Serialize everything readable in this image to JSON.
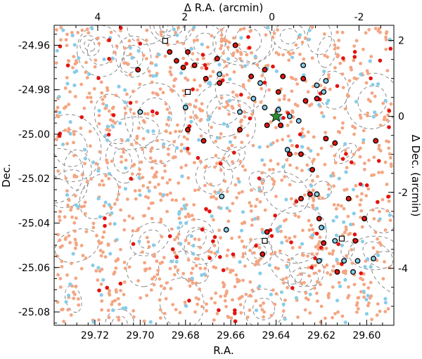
{
  "chart_data": {
    "type": "scatter",
    "xlabel": "R.A.",
    "ylabel": "Dec.",
    "top_xlabel": "Δ R.A. (arcmin)",
    "right_ylabel": "Δ Dec. (arcmin)",
    "xlim": [
      29.738,
      29.588
    ],
    "ylim": [
      -25.086,
      -24.951
    ],
    "top_xlim": [
      5.0,
      -2.8
    ],
    "right_ylim": [
      -5.5,
      2.4
    ],
    "x_ticks": [
      "29.72",
      "29.70",
      "29.68",
      "29.66",
      "29.64",
      "29.62",
      "29.60"
    ],
    "y_ticks": [
      "-24.96",
      "-24.98",
      "-25.00",
      "-25.02",
      "-25.04",
      "-25.06",
      "-25.08"
    ],
    "top_ticks": [
      "4",
      "2",
      "0",
      "-2"
    ],
    "right_ticks": [
      "2",
      "0",
      "-2",
      "-4"
    ],
    "colors": {
      "field_galaxies": "#f4a582",
      "blue_galaxies": "#87cde8",
      "red_galaxies": "#e3140f",
      "contours": "#888888",
      "star": "#2e8b2e"
    },
    "grid": false,
    "legend": "none",
    "center_marker": {
      "type": "star",
      "ra": 29.64,
      "dec": -24.992
    },
    "square_markers": [
      {
        "ra": 29.689,
        "dec": -24.958
      },
      {
        "ra": 29.679,
        "dec": -24.981
      },
      {
        "ra": 29.645,
        "dec": -25.048
      },
      {
        "ra": 29.611,
        "dec": -25.047
      }
    ],
    "circled_blue": [
      {
        "ra": 29.7,
        "dec": -24.99
      },
      {
        "ra": 29.634,
        "dec": -24.992
      },
      {
        "ra": 29.63,
        "dec": -24.994
      },
      {
        "ra": 29.639,
        "dec": -24.989
      },
      {
        "ra": 29.65,
        "dec": -24.984
      },
      {
        "ra": 29.647,
        "dec": -24.977
      },
      {
        "ra": 29.628,
        "dec": -24.969
      },
      {
        "ra": 29.622,
        "dec": -24.978
      },
      {
        "ra": 29.618,
        "dec": -24.976
      },
      {
        "ra": 29.619,
        "dec": -24.981
      },
      {
        "ra": 29.656,
        "dec": -24.99
      },
      {
        "ra": 29.665,
        "dec": -24.973
      },
      {
        "ra": 29.664,
        "dec": -25.028
      },
      {
        "ra": 29.622,
        "dec": -25.027
      },
      {
        "ra": 29.662,
        "dec": -25.043
      },
      {
        "ra": 29.62,
        "dec": -25.042
      },
      {
        "ra": 29.614,
        "dec": -25.048
      },
      {
        "ra": 29.61,
        "dec": -25.057
      },
      {
        "ra": 29.621,
        "dec": -25.057
      },
      {
        "ra": 29.604,
        "dec": -25.057
      },
      {
        "ra": 29.597,
        "dec": -25.056
      },
      {
        "ra": 29.606,
        "dec": -25.062
      },
      {
        "ra": 29.68,
        "dec": -24.988
      },
      {
        "ra": 29.635,
        "dec": -25.007
      },
      {
        "ra": 29.645,
        "dec": -24.988
      }
    ],
    "circled_red": [
      {
        "ra": 29.701,
        "dec": -24.971
      },
      {
        "ra": 29.687,
        "dec": -24.963
      },
      {
        "ra": 29.684,
        "dec": -24.967
      },
      {
        "ra": 29.681,
        "dec": -24.97
      },
      {
        "ra": 29.679,
        "dec": -24.963
      },
      {
        "ra": 29.676,
        "dec": -24.969
      },
      {
        "ra": 29.671,
        "dec": -24.975
      },
      {
        "ra": 29.666,
        "dec": -24.966
      },
      {
        "ra": 29.658,
        "dec": -24.96
      },
      {
        "ra": 29.651,
        "dec": -24.974
      },
      {
        "ra": 29.639,
        "dec": -24.981
      },
      {
        "ra": 29.637,
        "dec": -24.974
      },
      {
        "ra": 29.627,
        "dec": -24.985
      },
      {
        "ra": 29.622,
        "dec": -24.984
      },
      {
        "ra": 29.656,
        "dec": -24.998
      },
      {
        "ra": 29.679,
        "dec": -24.998
      },
      {
        "ra": 29.672,
        "dec": -25.003
      },
      {
        "ra": 29.618,
        "dec": -25.002
      },
      {
        "ra": 29.614,
        "dec": -25.004
      },
      {
        "ra": 29.596,
        "dec": -25.003
      },
      {
        "ra": 29.634,
        "dec": -25.009
      },
      {
        "ra": 29.629,
        "dec": -25.009
      },
      {
        "ra": 29.624,
        "dec": -25.016
      },
      {
        "ra": 29.625,
        "dec": -25.027
      },
      {
        "ra": 29.629,
        "dec": -25.029
      },
      {
        "ra": 29.608,
        "dec": -25.029
      },
      {
        "ra": 29.621,
        "dec": -25.038
      },
      {
        "ra": 29.601,
        "dec": -25.038
      },
      {
        "ra": 29.644,
        "dec": -25.044
      },
      {
        "ra": 29.646,
        "dec": -25.054
      },
      {
        "ra": 29.619,
        "dec": -25.049
      },
      {
        "ra": 29.605,
        "dec": -25.048
      },
      {
        "ra": 29.613,
        "dec": -25.062
      },
      {
        "ra": 29.638,
        "dec": -24.996
      },
      {
        "ra": 29.644,
        "dec": -24.996
      },
      {
        "ra": 29.645,
        "dec": -24.971
      },
      {
        "ra": 29.665,
        "dec": -24.977
      },
      {
        "ra": 29.628,
        "dec": -24.975
      }
    ]
  }
}
